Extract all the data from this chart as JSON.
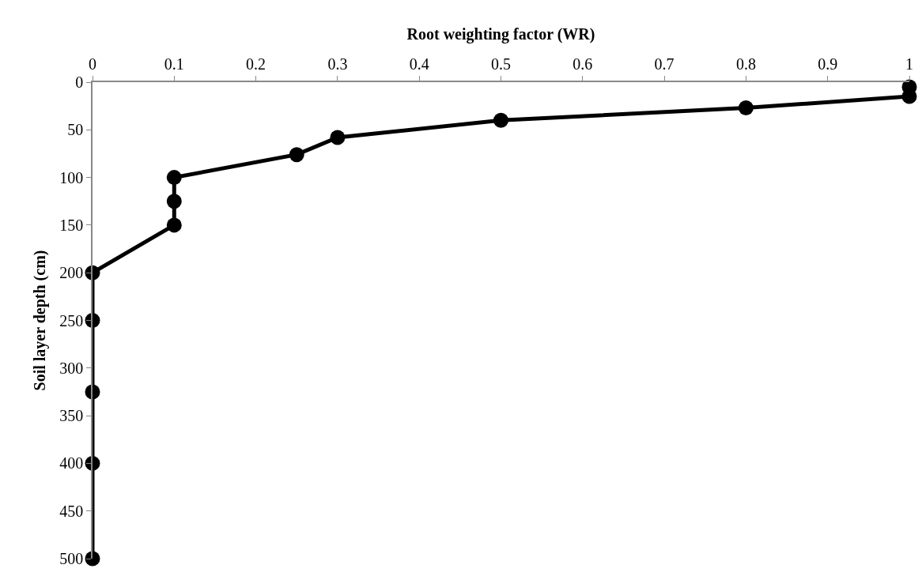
{
  "chart_data": {
    "type": "line",
    "xlabel": "Root weighting factor (WR)",
    "ylabel": "Soil layer depth (cm)",
    "series": [
      {
        "color": "#000000",
        "x": [
          1,
          1,
          0.8,
          0.5,
          0.3,
          0.25,
          0.1,
          0.1,
          0.1,
          0,
          0,
          0,
          0,
          0
        ],
        "values": [
          5,
          15,
          27,
          40,
          58,
          76,
          100,
          125,
          150,
          200,
          250,
          325,
          400,
          500
        ]
      }
    ],
    "xlim": [
      0,
      1
    ],
    "xticks": [
      0,
      0.1,
      0.2,
      0.3,
      0.4,
      0.5,
      0.6,
      0.7,
      0.8,
      0.9,
      1
    ],
    "ylim": [
      500,
      0
    ],
    "yticks": [
      0,
      50,
      100,
      150,
      200,
      250,
      300,
      350,
      400,
      450,
      500
    ],
    "legend": false,
    "marker": "circle",
    "line_style": "solid"
  }
}
